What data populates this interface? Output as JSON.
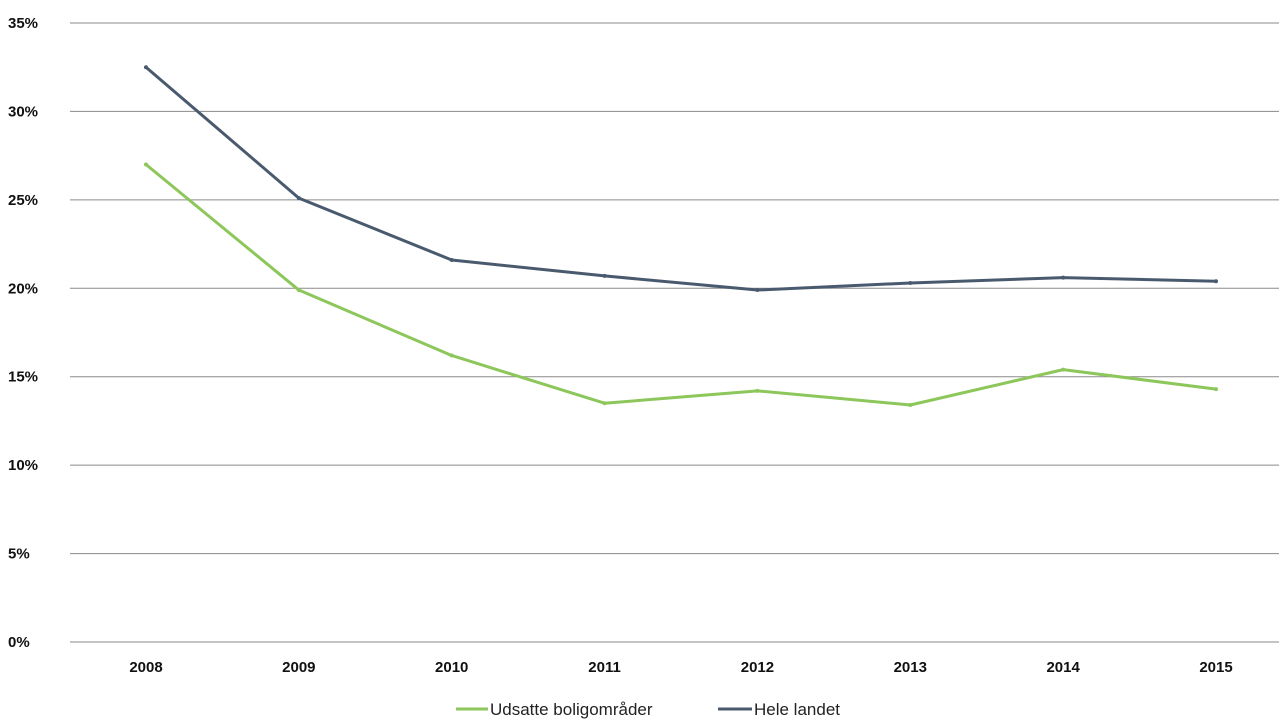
{
  "chart_data": {
    "type": "line",
    "categories": [
      "2008",
      "2009",
      "2010",
      "2011",
      "2012",
      "2013",
      "2014",
      "2015"
    ],
    "ylim": [
      0,
      35
    ],
    "yticks": [
      {
        "value": 0,
        "label": "0%"
      },
      {
        "value": 5,
        "label": "5%"
      },
      {
        "value": 10,
        "label": "10%"
      },
      {
        "value": 15,
        "label": "15%"
      },
      {
        "value": 20,
        "label": "20%"
      },
      {
        "value": 25,
        "label": "25%"
      },
      {
        "value": 30,
        "label": "30%"
      },
      {
        "value": 35,
        "label": "35%"
      }
    ],
    "grid": true,
    "legend_position": "bottom",
    "series": [
      {
        "name": "Udsatte boligområder",
        "color": "#8dc65a",
        "values": [
          27.0,
          19.9,
          16.2,
          13.5,
          14.2,
          13.4,
          15.4,
          14.3
        ]
      },
      {
        "name": "Hele landet",
        "color": "#4a5a6e",
        "values": [
          32.5,
          25.1,
          21.6,
          20.7,
          19.9,
          20.3,
          20.6,
          20.4
        ]
      }
    ]
  }
}
